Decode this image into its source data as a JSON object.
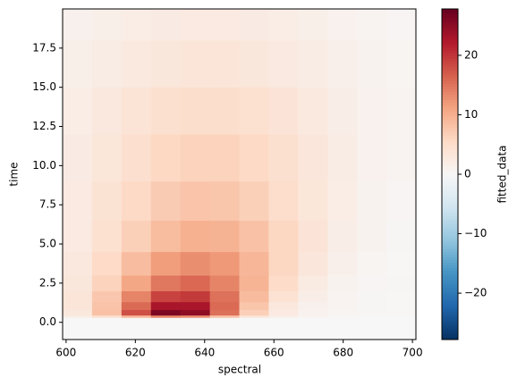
{
  "chart_data": {
    "type": "heatmap",
    "x_label": "spectral",
    "y_label": "time",
    "colorbar_label": "fitted_data",
    "colormap": "RdBu_r",
    "xbins": [
      599,
      607.5,
      616,
      624.5,
      633,
      641.5,
      650,
      658.5,
      667,
      675.5,
      684,
      692.5,
      701
    ],
    "ybins": [
      -1.1,
      0.3,
      0.45,
      0.8,
      1.3,
      2,
      3,
      4.5,
      6.5,
      9,
      12,
      15,
      18,
      20
    ],
    "values": [
      [
        0,
        0,
        0,
        0,
        0,
        0,
        0,
        0,
        0,
        0,
        0,
        0
      ],
      [
        2,
        4.5,
        9.3,
        13.6,
        12.9,
        8.0,
        3.5,
        1.5,
        0.8,
        0.4,
        0.2,
        0.1
      ],
      [
        3,
        8.2,
        18.0,
        26.2,
        24.9,
        15.4,
        6.8,
        2.5,
        1.2,
        0.6,
        0.3,
        0.2
      ],
      [
        3.5,
        8,
        15.9,
        22.9,
        22.9,
        15.9,
        7.8,
        3,
        1.3,
        0.7,
        0.4,
        0.2
      ],
      [
        3.5,
        7.6,
        13.8,
        18.9,
        19.6,
        15.3,
        8.9,
        4.2,
        1.8,
        0.8,
        0.4,
        0.2
      ],
      [
        3.1,
        6.4,
        10.9,
        14.8,
        16.0,
        13.8,
        9.6,
        5.3,
        2.4,
        1.0,
        0.5,
        0.3
      ],
      [
        2.9,
        5.5,
        8.7,
        11.7,
        13.0,
        12.1,
        9.4,
        6.0,
        3.3,
        1.5,
        0.6,
        0.2
      ],
      [
        2.5,
        4.4,
        6.7,
        8.8,
        9.9,
        9.7,
        8.1,
        5.9,
        3.7,
        1.9,
        0.9,
        0.4
      ],
      [
        2.5,
        4.0,
        5.7,
        7.2,
        7.9,
        7.8,
        6.7,
        5.1,
        3.4,
        2.0,
        1.0,
        0.5
      ],
      [
        2.3,
        3.4,
        4.7,
        5.8,
        6.4,
        6.4,
        5.7,
        4.6,
        3.3,
        2.1,
        1.2,
        0.7
      ],
      [
        2.0,
        2.9,
        3.8,
        4.6,
        5.0,
        4.9,
        4.5,
        3.7,
        2.8,
        1.9,
        1.2,
        0.7
      ],
      [
        1.6,
        2.2,
        2.8,
        3.2,
        3.5,
        3.5,
        3.2,
        2.7,
        2.1,
        1.5,
        1.0,
        0.6
      ],
      [
        1.3,
        1.6,
        2.0,
        2.3,
        2.5,
        2.5,
        2.3,
        2.0,
        1.6,
        1.2,
        0.8,
        0.5
      ]
    ],
    "xlim": [
      599,
      701
    ],
    "xticks": [
      600,
      620,
      640,
      660,
      680,
      700
    ],
    "ylim": [
      -1.1,
      20
    ],
    "yticks": [
      {
        "value": 0,
        "label": "0.0"
      },
      2.5,
      {
        "value": 5,
        "label": "5.0"
      },
      7.5,
      {
        "value": 10,
        "label": "10.0"
      },
      12.5,
      {
        "value": 15,
        "label": "15.0"
      },
      17.5
    ],
    "zlim": [
      -27.8,
      27.8
    ],
    "zticks": [
      {
        "value": -20,
        "label": "−20"
      },
      {
        "value": -10,
        "label": "−10"
      },
      0,
      10,
      20
    ]
  }
}
